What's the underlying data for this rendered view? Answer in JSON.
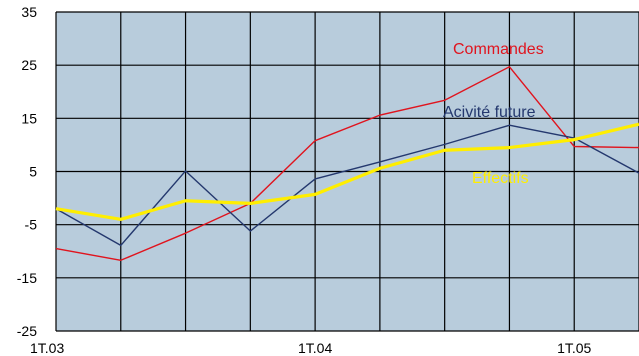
{
  "chart_data": {
    "type": "line",
    "title": "",
    "xlabel": "",
    "ylabel": "",
    "x_ticks": [
      "1T.03",
      "1T.04",
      "1T.05"
    ],
    "y_ticks": [
      35,
      25,
      15,
      5,
      -5,
      -15,
      -25
    ],
    "ylim": [
      -25,
      35
    ],
    "grid": true,
    "plot_background": "#b8ccdc",
    "series": [
      {
        "name": "Commandes",
        "color": "#e0141e",
        "values": [
          -9.5,
          -11.7,
          -6.6,
          -1,
          10.8,
          15.6,
          18.4,
          24.7,
          9.7,
          9.5
        ]
      },
      {
        "name": "Acivité future",
        "color": "#24386e",
        "values": [
          -2,
          -8.9,
          5.1,
          -6.2,
          3.6,
          6.8,
          10.1,
          13.7,
          11.3,
          4.7
        ]
      },
      {
        "name": "Effectifs",
        "color": "#ffee00",
        "values": [
          -2,
          -4,
          -0.5,
          -1,
          0.7,
          5.6,
          9,
          9.5,
          11,
          13.9
        ]
      }
    ]
  }
}
